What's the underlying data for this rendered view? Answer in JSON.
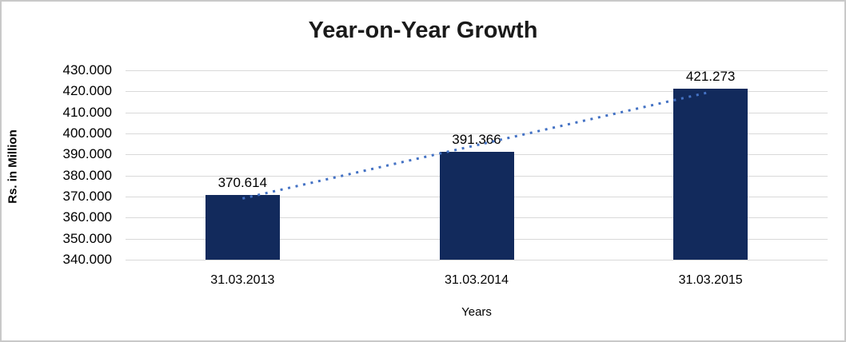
{
  "chart_data": {
    "type": "bar",
    "title": "Year-on-Year Growth",
    "categories": [
      "31.03.2013",
      "31.03.2014",
      "31.03.2015"
    ],
    "values": [
      370.614,
      391.366,
      421.273
    ],
    "data_labels": [
      "370.614",
      "391.366",
      "421.273"
    ],
    "xlabel": "Years",
    "ylabel": "Rs. in Million",
    "ylim": [
      340,
      430
    ],
    "ytick_step": 10,
    "ytick_labels": [
      "340.000",
      "350.000",
      "360.000",
      "370.000",
      "380.000",
      "390.000",
      "400.000",
      "410.000",
      "420.000",
      "430.000"
    ],
    "grid": true,
    "legend": false,
    "trendline": {
      "type": "linear",
      "style": "dotted",
      "color": "#4472c4"
    },
    "colors": {
      "bar": "#122a5c",
      "gridline": "#d9d9d9",
      "frame_border": "#c9c9c9",
      "text": "#000000",
      "background": "#ffffff"
    }
  }
}
